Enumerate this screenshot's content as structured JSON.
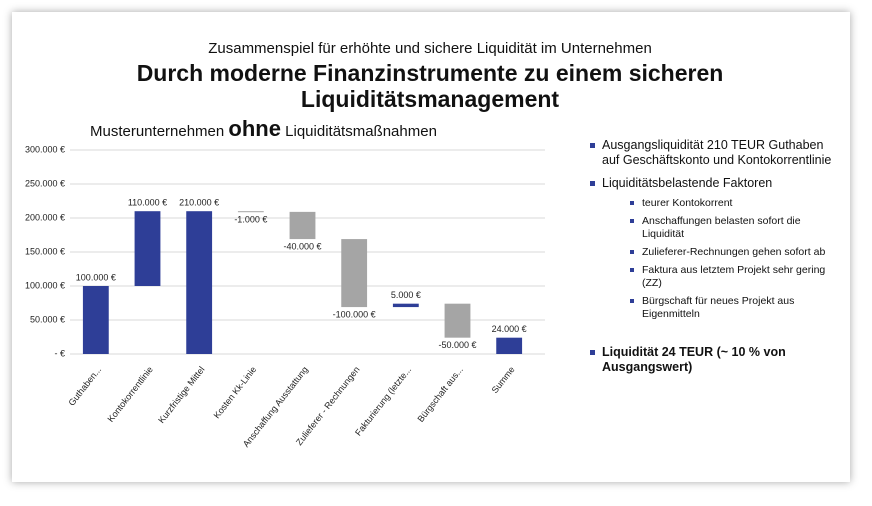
{
  "slide": {
    "supertitle": "Zusammenspiel für erhöhte und sichere Liquidität im Unternehmen",
    "title": "Durch moderne Finanzinstrumente zu einem sicheren Liquiditätsmanagement",
    "chart_heading": [
      "Musterunternehmen",
      "ohne",
      "Liquiditätsmaßnahmen"
    ],
    "bullets": [
      {
        "text": "Ausgangsliquidität 210 TEUR Guthaben auf Geschäftskonto und Kontokorrentlinie"
      },
      {
        "text": "Liquiditätsbelastende Faktoren",
        "children": [
          "teurer Kontokorrent",
          "Anschaffungen belasten sofort die Liquidität",
          "Zulieferer-Rechnungen gehen sofort ab",
          "Faktura aus letztem Projekt sehr gering (ZZ)",
          "Bürgschaft für neues Projekt aus Eigenmitteln"
        ]
      },
      {
        "text": "Liquidität 24 TEUR (~ 10 % von Ausgangswert)"
      }
    ]
  },
  "chart_data": {
    "type": "waterfall",
    "categories": [
      "Guthaben...",
      "Kontokorrentlinie",
      "Kurzfristige Mittel",
      "Kosten Kk-Linie",
      "Anschaffung Ausstattung",
      "Zulieferer - Rechnungen",
      "Fakturierung (letzte...",
      "Bürgschaft aus...",
      "Summe"
    ],
    "values": [
      100000,
      110000,
      210000,
      -1000,
      -40000,
      -100000,
      5000,
      -50000,
      24000
    ],
    "value_labels": [
      "100.000 €",
      "110.000 €",
      "210.000 €",
      "-1.000 €",
      "-40.000 €",
      "-100.000 €",
      "5.000 €",
      "-50.000 €",
      "24.000 €"
    ],
    "measures": [
      "relative",
      "relative",
      "total",
      "relative",
      "relative",
      "relative",
      "relative",
      "relative",
      "total"
    ],
    "increase_color": "#2e3e97",
    "decrease_color": "#a5a5a5",
    "total_color": "#2e3e97",
    "ylim": [
      0,
      300000
    ],
    "yticks": [
      {
        "value": 0,
        "label": "-   €"
      },
      {
        "value": 50000,
        "label": "50.000 €"
      },
      {
        "value": 100000,
        "label": "100.000 €"
      },
      {
        "value": 150000,
        "label": "150.000 €"
      },
      {
        "value": 200000,
        "label": "200.000 €"
      },
      {
        "value": 250000,
        "label": "250.000 €"
      },
      {
        "value": 300000,
        "label": "300.000 €"
      }
    ],
    "grid": true
  }
}
